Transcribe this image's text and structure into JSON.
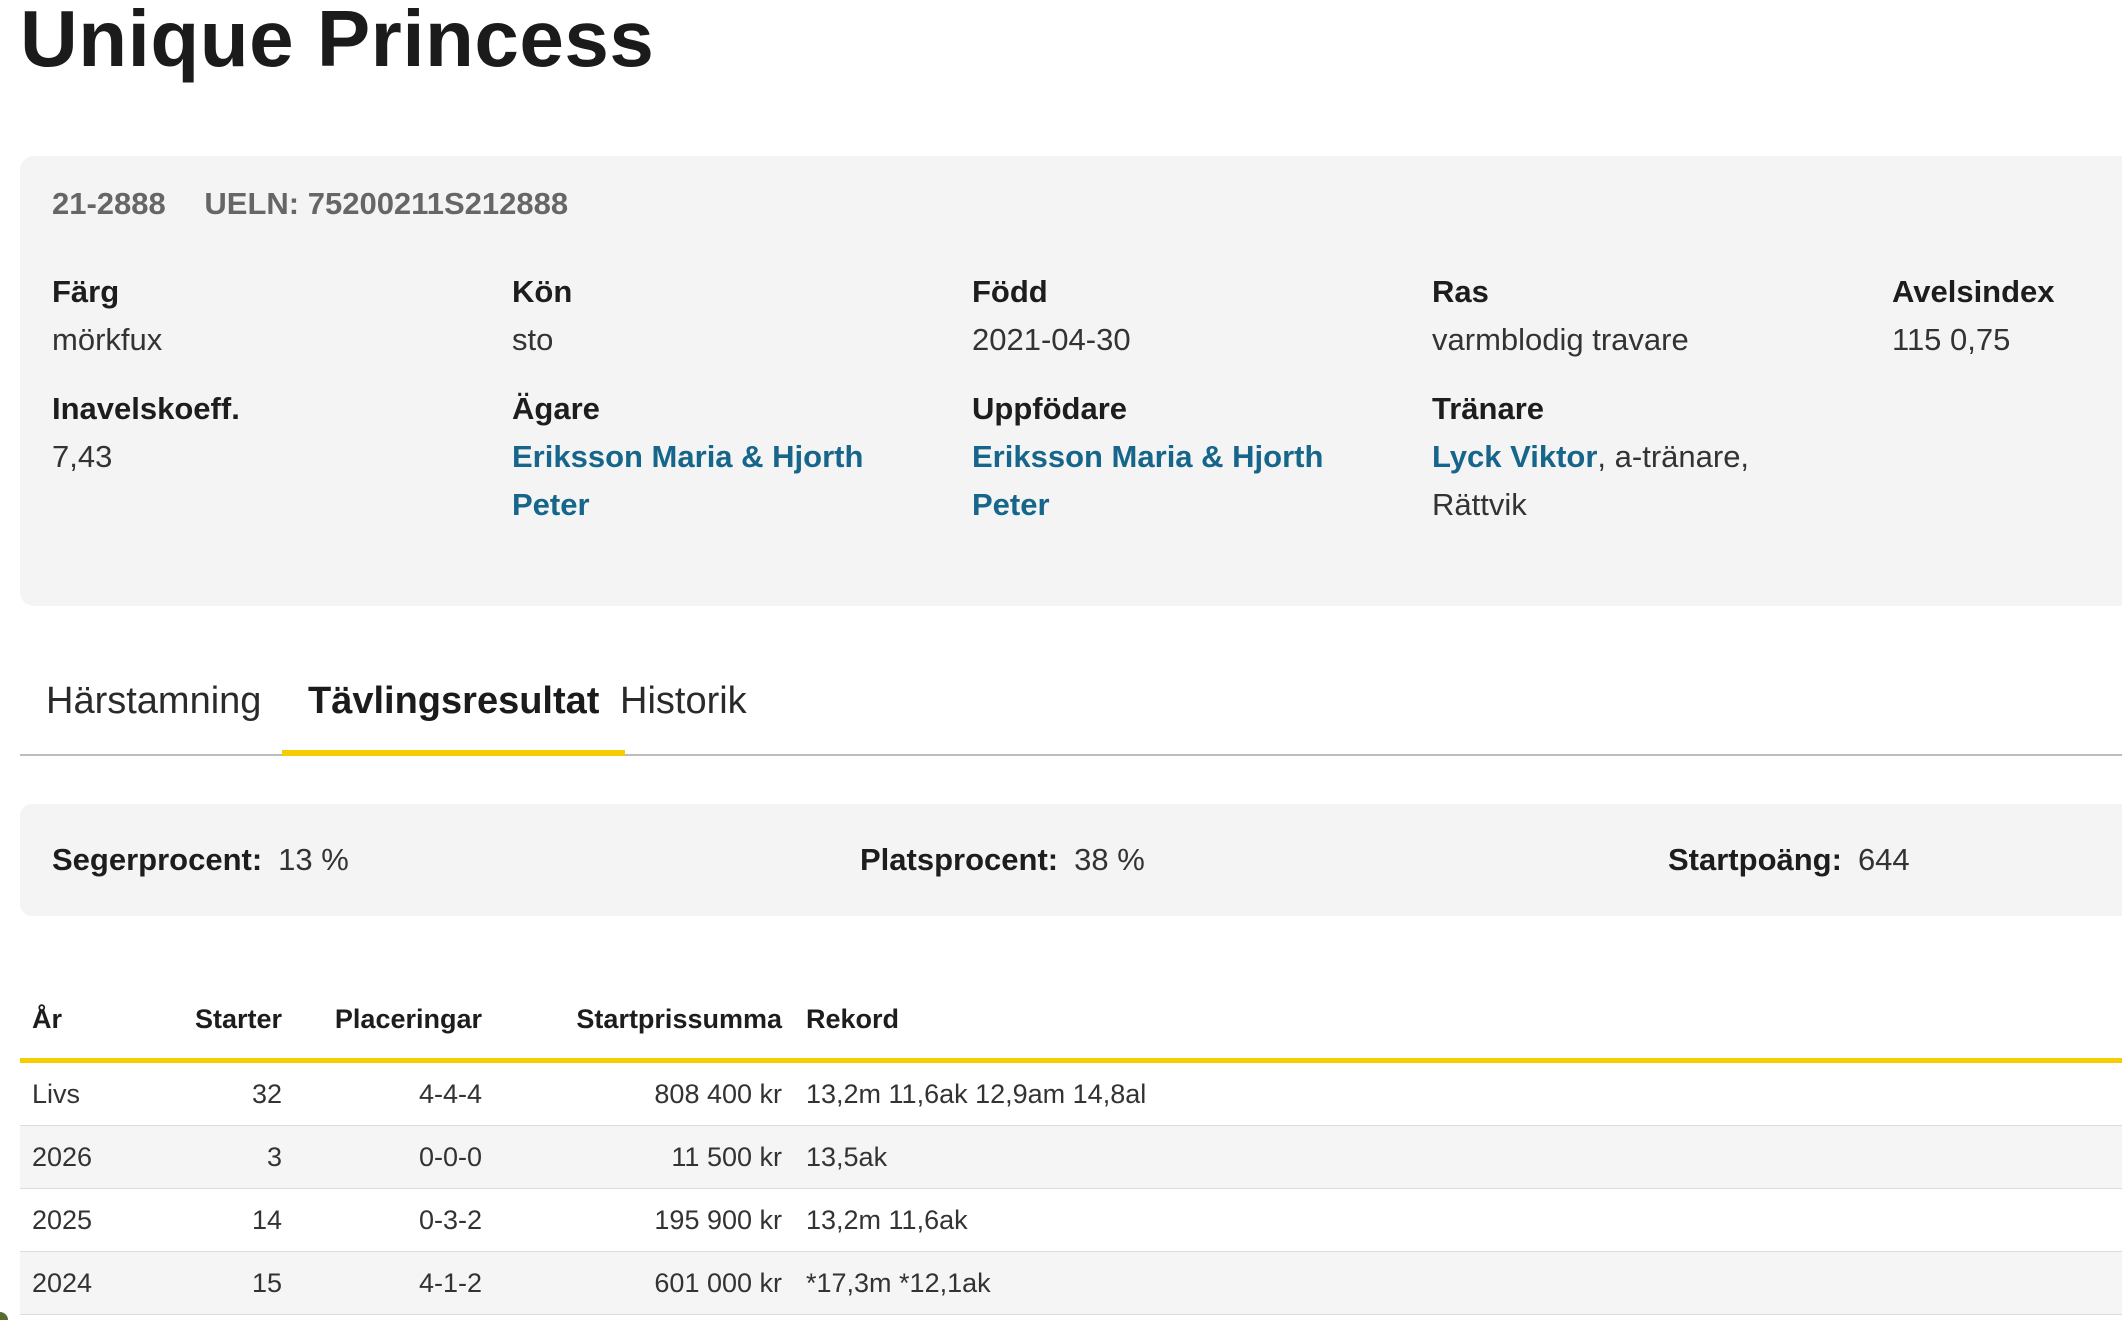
{
  "horse": {
    "name": "Unique Princess",
    "reg_number": "21-2888",
    "ueln": "UELN: 75200211S212888"
  },
  "details": {
    "color": {
      "label": "Färg",
      "value": "mörkfux"
    },
    "sex": {
      "label": "Kön",
      "value": "sto"
    },
    "born": {
      "label": "Född",
      "value": "2021-04-30"
    },
    "breed": {
      "label": "Ras",
      "value": "varmblodig travare"
    },
    "breeding_index": {
      "label": "Avelsindex",
      "value": "115 0,75"
    },
    "inbreeding": {
      "label": "Inavelskoeff.",
      "value": "7,43"
    },
    "owner": {
      "label": "Ägare",
      "value_line1": "Eriksson Maria & Hjorth",
      "value_line2": "Peter"
    },
    "breeder": {
      "label": "Uppfödare",
      "value_line1": "Eriksson Maria & Hjorth",
      "value_line2": "Peter"
    },
    "trainer": {
      "label": "Tränare",
      "link": "Lyck Viktor",
      "suffix": ", a-tränare,",
      "line2": "Rättvik"
    }
  },
  "tabs": [
    {
      "label": "Härstamning",
      "active": false
    },
    {
      "label": "Tävlingsresultat",
      "active": true
    },
    {
      "label": "Historik",
      "active": false
    }
  ],
  "stats": {
    "win_pct": {
      "label": "Segerprocent:",
      "value": "13 %"
    },
    "place_pct": {
      "label": "Platsprocent:",
      "value": "38 %"
    },
    "start_points": {
      "label": "Startpoäng:",
      "value": "644"
    }
  },
  "results_table": {
    "headers": {
      "year": "År",
      "starts": "Starter",
      "placings": "Placeringar",
      "prize": "Startprissumma",
      "record": "Rekord"
    },
    "rows": [
      {
        "year": "Livs",
        "starts": "32",
        "placings": "4-4-4",
        "prize": "808 400 kr",
        "record": "13,2m 11,6ak 12,9am 14,8al"
      },
      {
        "year": "2026",
        "starts": "3",
        "placings": "0-0-0",
        "prize": "11 500 kr",
        "record": "13,5ak"
      },
      {
        "year": "2025",
        "starts": "14",
        "placings": "0-3-2",
        "prize": "195 900 kr",
        "record": "13,2m 11,6ak"
      },
      {
        "year": "2024",
        "starts": "15",
        "placings": "4-1-2",
        "prize": "601 000 kr",
        "record": "*17,3m *12,1ak"
      }
    ]
  },
  "colors": {
    "accent": "#f6cd00",
    "link": "#16658a",
    "card_bg": "#f4f4f4"
  }
}
